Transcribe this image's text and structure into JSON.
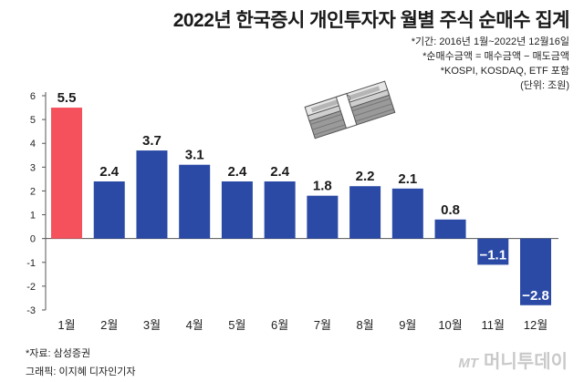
{
  "title": "2022년 한국증시 개인투자자 월별 주식 순매수 집계",
  "notes": [
    "*기간: 2016년 1월~2022년 12월16일",
    "*순매수금액 = 매수금액 − 매도금액",
    "*KOSPI, KOSDAQ, ETF 포함",
    "(단위: 조원)"
  ],
  "footer": {
    "source": "*자료: 삼성증권",
    "graphic": "그래픽: 이지혜 디자인기자"
  },
  "watermark": {
    "mt": "MT",
    "brand": "머니투데이"
  },
  "icon": "money-stack-icon",
  "chart_data": {
    "type": "bar",
    "categories": [
      "1월",
      "2월",
      "3월",
      "4월",
      "5월",
      "6월",
      "7월",
      "8월",
      "9월",
      "10월",
      "11월",
      "12월"
    ],
    "values": [
      5.5,
      2.4,
      3.7,
      3.1,
      2.4,
      2.4,
      1.8,
      2.2,
      2.1,
      0.8,
      -1.1,
      -2.8
    ],
    "labels": [
      "5.5",
      "2.4",
      "3.7",
      "3.1",
      "2.4",
      "2.4",
      "1.8",
      "2.2",
      "2.1",
      "0.8",
      "−1.1",
      "−2.8"
    ],
    "yticks": [
      6,
      5,
      4,
      3,
      2,
      1,
      0,
      -1,
      -2,
      -3
    ],
    "ylim": [
      -3,
      6
    ],
    "grid": false,
    "colors": {
      "highlight": "#f4515c",
      "bar": "#2b4aa5",
      "axis": "#555555"
    },
    "highlight_index": 0
  }
}
